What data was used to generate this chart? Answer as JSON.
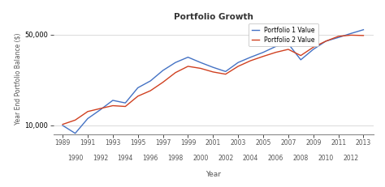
{
  "title": "Portfolio Growth",
  "xlabel": "Year",
  "ylabel": "Year End Portfolio Balance ($)",
  "legend": [
    "Portfolio 1 Value",
    "Portfolio 2 Value"
  ],
  "colors": [
    "#4472C4",
    "#D04020"
  ],
  "background_color": "#FFFFFF",
  "yticks": [
    10000,
    50000
  ],
  "ytick_labels": [
    "10,000",
    "50,000"
  ],
  "years": [
    1989,
    1990,
    1991,
    1992,
    1993,
    1994,
    1995,
    1996,
    1997,
    1998,
    1999,
    2000,
    2001,
    2002,
    2003,
    2004,
    2005,
    2006,
    2007,
    2008,
    2009,
    2010,
    2011,
    2012,
    2013
  ],
  "portfolio1": [
    10000,
    8700,
    11300,
    13200,
    15600,
    14900,
    19500,
    22000,
    26500,
    30500,
    33500,
    30500,
    28000,
    26000,
    30500,
    33500,
    36500,
    40500,
    42500,
    32000,
    38500,
    44500,
    47500,
    51000,
    54500
  ],
  "portfolio2": [
    10200,
    11000,
    12800,
    13500,
    14200,
    14000,
    16800,
    18500,
    21500,
    25500,
    28500,
    27500,
    25800,
    24800,
    28500,
    31500,
    34000,
    36500,
    38500,
    34500,
    40000,
    44500,
    48500,
    49500,
    49200
  ],
  "xlim": [
    1988.3,
    2013.8
  ],
  "ylim": [
    8500,
    62000
  ]
}
